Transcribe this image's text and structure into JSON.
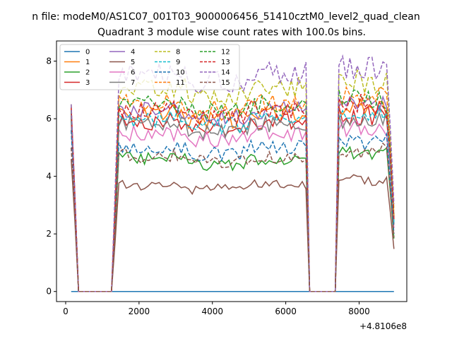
{
  "chart_data": {
    "type": "line",
    "suptitle": "n file: modeM0/AS1C07_001T03_9000006456_51410cztM0_level2_quad_clean",
    "title": "Quadrant 3 module wise count rates with 100.0s bins.",
    "xlabel": "",
    "ylabel": "",
    "x_offset_label": "+4.8106e8",
    "xlim": [
      -250,
      9300
    ],
    "ylim": [
      -0.35,
      8.7
    ],
    "xticks": [
      0,
      2000,
      4000,
      6000,
      8000
    ],
    "yticks": [
      0,
      2,
      4,
      6,
      8
    ],
    "grid": false,
    "legend": {
      "placement": "top-left",
      "columns": 4
    },
    "x_start": 150,
    "x_step": 100,
    "segments": [
      {
        "x_start": 150,
        "x_end": 1250,
        "kind": "ramp-down"
      },
      {
        "x_start": 1250,
        "x_end": 1450,
        "kind": "ramp-up"
      },
      {
        "x_start": 1450,
        "x_end": 6550,
        "kind": "plateau"
      },
      {
        "x_start": 6550,
        "x_end": 6650,
        "kind": "ramp-down"
      },
      {
        "x_start": 6650,
        "x_end": 7450,
        "kind": "zero"
      },
      {
        "x_start": 7450,
        "x_end": 8950,
        "kind": "plateau"
      }
    ],
    "series": [
      {
        "name": "0",
        "color": "#1f77b4",
        "dash": "solid",
        "level": 0.0,
        "start": 0.0
      },
      {
        "name": "1",
        "color": "#ff7f0e",
        "dash": "solid",
        "level": 6.2,
        "start": 6.3
      },
      {
        "name": "2",
        "color": "#2ca02c",
        "dash": "solid",
        "level": 4.6,
        "start": 6.0
      },
      {
        "name": "3",
        "color": "#d62728",
        "dash": "solid",
        "level": 5.9,
        "start": 6.1
      },
      {
        "name": "4",
        "color": "#9467bd",
        "dash": "solid",
        "level": 6.3,
        "start": 6.2
      },
      {
        "name": "5",
        "color": "#8c564b",
        "dash": "solid",
        "level": 3.7,
        "start": 4.6
      },
      {
        "name": "6",
        "color": "#e377c2",
        "dash": "solid",
        "level": 5.5,
        "start": 5.8
      },
      {
        "name": "7",
        "color": "#7f7f7f",
        "dash": "solid",
        "level": 5.8,
        "start": 6.0
      },
      {
        "name": "8",
        "color": "#bcbd22",
        "dash": "dashed",
        "level": 7.1,
        "start": 6.5
      },
      {
        "name": "9",
        "color": "#17becf",
        "dash": "dashed",
        "level": 6.0,
        "start": 6.2
      },
      {
        "name": "10",
        "color": "#1f77b4",
        "dash": "dashed",
        "level": 5.0,
        "start": 5.6
      },
      {
        "name": "11",
        "color": "#ff7f0e",
        "dash": "dashed",
        "level": 6.6,
        "start": 6.4
      },
      {
        "name": "12",
        "color": "#2ca02c",
        "dash": "dashed",
        "level": 6.5,
        "start": 6.3
      },
      {
        "name": "13",
        "color": "#d62728",
        "dash": "dashed",
        "level": 6.3,
        "start": 6.4
      },
      {
        "name": "14",
        "color": "#9467bd",
        "dash": "dashed",
        "level": 7.6,
        "start": 6.5
      },
      {
        "name": "15",
        "color": "#8c564b",
        "dash": "dashed",
        "level": 4.7,
        "start": 5.0
      }
    ]
  }
}
